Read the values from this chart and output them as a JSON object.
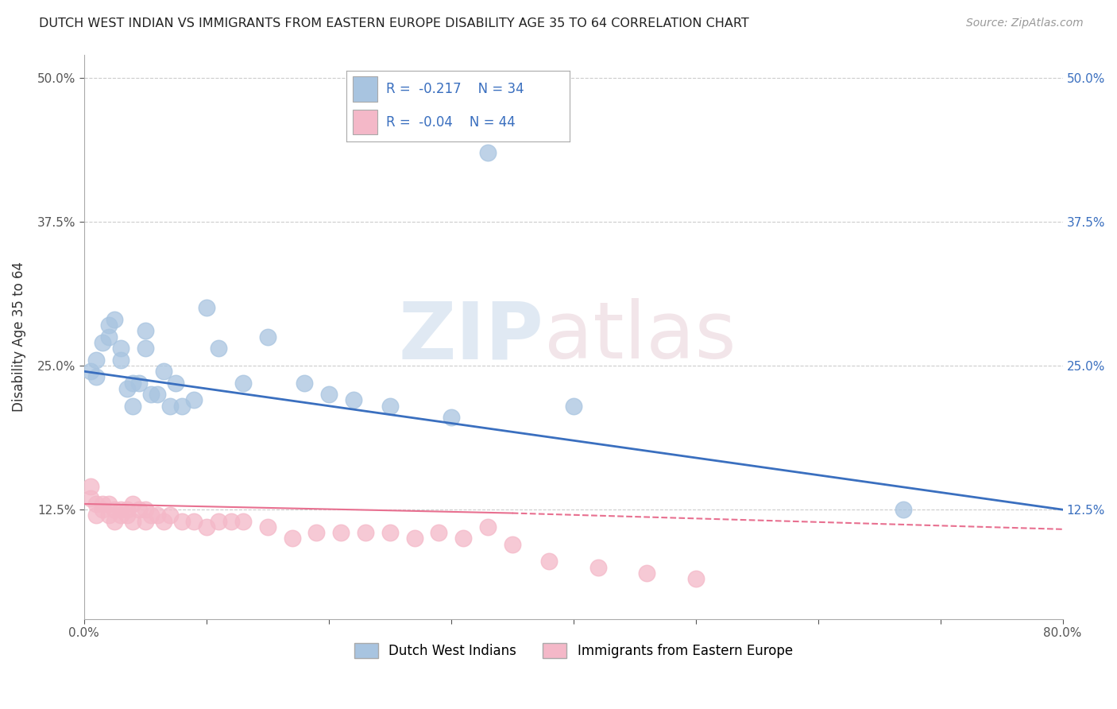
{
  "title": "DUTCH WEST INDIAN VS IMMIGRANTS FROM EASTERN EUROPE DISABILITY AGE 35 TO 64 CORRELATION CHART",
  "source": "Source: ZipAtlas.com",
  "ylabel": "Disability Age 35 to 64",
  "xlabel": "",
  "background_color": "#ffffff",
  "blue_r": -0.217,
  "blue_n": 34,
  "pink_r": -0.04,
  "pink_n": 44,
  "blue_color": "#a8c4e0",
  "pink_color": "#f4b8c8",
  "blue_line_color": "#3a6fbf",
  "pink_line_color": "#e87090",
  "grid_color": "#cccccc",
  "right_label_color": "#3a6fbf",
  "xmin": 0.0,
  "xmax": 0.8,
  "ymin": 0.03,
  "ymax": 0.52,
  "blue_scatter_x": [
    0.005,
    0.01,
    0.01,
    0.015,
    0.02,
    0.02,
    0.025,
    0.03,
    0.03,
    0.035,
    0.04,
    0.04,
    0.045,
    0.05,
    0.05,
    0.055,
    0.06,
    0.065,
    0.07,
    0.075,
    0.08,
    0.09,
    0.1,
    0.11,
    0.13,
    0.15,
    0.18,
    0.2,
    0.22,
    0.25,
    0.3,
    0.33,
    0.4,
    0.67
  ],
  "blue_scatter_y": [
    0.245,
    0.255,
    0.24,
    0.27,
    0.285,
    0.275,
    0.29,
    0.265,
    0.255,
    0.23,
    0.235,
    0.215,
    0.235,
    0.28,
    0.265,
    0.225,
    0.225,
    0.245,
    0.215,
    0.235,
    0.215,
    0.22,
    0.3,
    0.265,
    0.235,
    0.275,
    0.235,
    0.225,
    0.22,
    0.215,
    0.205,
    0.435,
    0.215,
    0.125
  ],
  "pink_scatter_x": [
    0.005,
    0.005,
    0.01,
    0.01,
    0.015,
    0.015,
    0.02,
    0.02,
    0.025,
    0.025,
    0.03,
    0.03,
    0.035,
    0.035,
    0.04,
    0.04,
    0.045,
    0.05,
    0.05,
    0.055,
    0.06,
    0.065,
    0.07,
    0.08,
    0.09,
    0.1,
    0.11,
    0.12,
    0.13,
    0.15,
    0.17,
    0.19,
    0.21,
    0.23,
    0.25,
    0.27,
    0.29,
    0.31,
    0.33,
    0.35,
    0.38,
    0.42,
    0.46,
    0.5
  ],
  "pink_scatter_y": [
    0.145,
    0.135,
    0.13,
    0.12,
    0.13,
    0.125,
    0.13,
    0.12,
    0.125,
    0.115,
    0.125,
    0.12,
    0.125,
    0.12,
    0.13,
    0.115,
    0.125,
    0.125,
    0.115,
    0.12,
    0.12,
    0.115,
    0.12,
    0.115,
    0.115,
    0.11,
    0.115,
    0.115,
    0.115,
    0.11,
    0.1,
    0.105,
    0.105,
    0.105,
    0.105,
    0.1,
    0.105,
    0.1,
    0.11,
    0.095,
    0.08,
    0.075,
    0.07,
    0.065
  ],
  "legend_label_blue": "Dutch West Indians",
  "legend_label_pink": "Immigrants from Eastern Europe",
  "ytick_positions": [
    0.125,
    0.25,
    0.375,
    0.5
  ],
  "ytick_labels": [
    "12.5%",
    "25.0%",
    "37.5%",
    "50.0%"
  ],
  "xtick_positions": [
    0.0,
    0.1,
    0.2,
    0.3,
    0.4,
    0.5,
    0.6,
    0.7,
    0.8
  ],
  "xtick_labels": [
    "0.0%",
    "",
    "",
    "",
    "",
    "",
    "",
    "",
    "80.0%"
  ]
}
